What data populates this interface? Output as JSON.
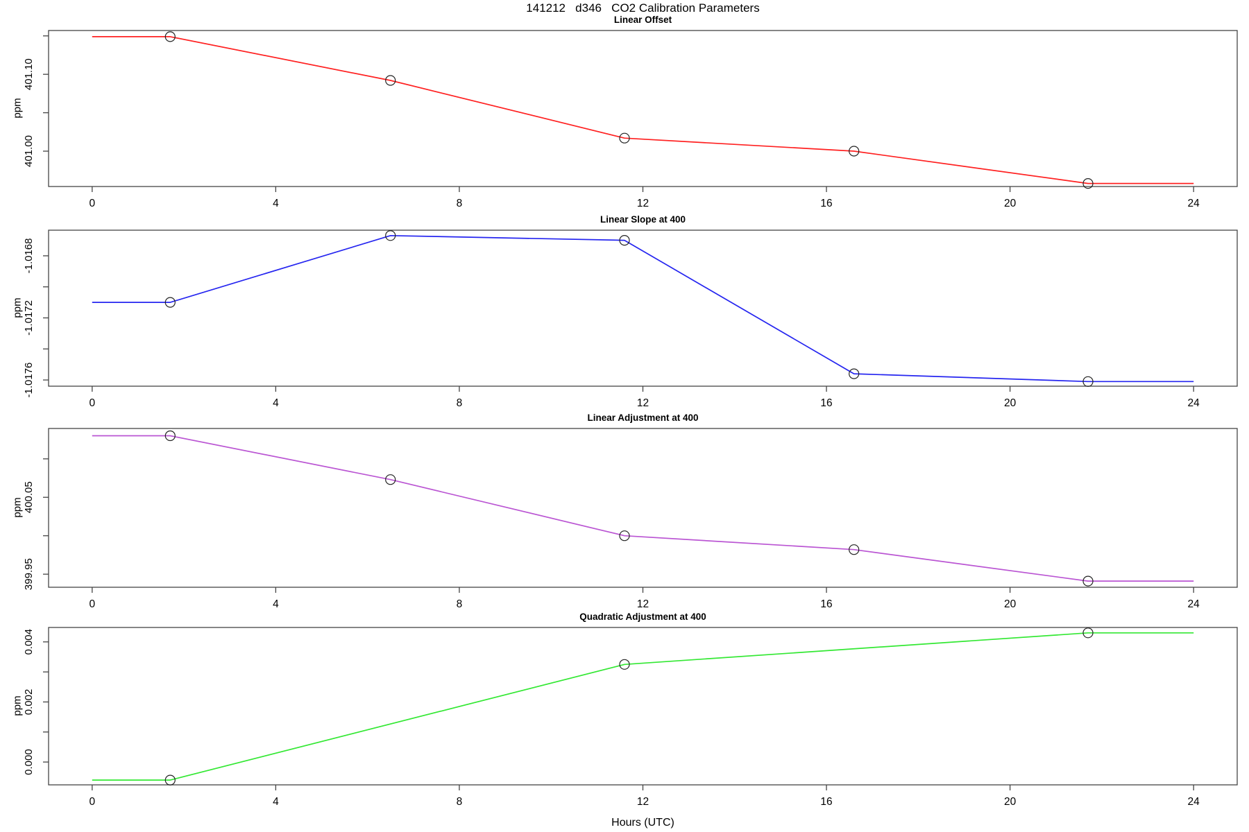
{
  "title": "141212   d346   CO2 Calibration Parameters",
  "xlabel": "Hours (UTC)",
  "x_axis": {
    "ticks": [
      0,
      4,
      8,
      12,
      16,
      20,
      24
    ],
    "range": [
      -0.95,
      24.95
    ]
  },
  "colors": {
    "linear_offset": "#ff2020",
    "linear_slope": "#2525f0",
    "linear_adjustment": "#ba55d3",
    "quadratic_adjustment": "#33e833",
    "marker_stroke": "#222222",
    "axis": "#444444"
  },
  "chart_data": [
    {
      "type": "line",
      "title": "Linear Offset",
      "ylabel": "ppm",
      "color": "#ff2020",
      "x": [
        0,
        1.7,
        6.5,
        11.6,
        16.6,
        21.7,
        24
      ],
      "y": [
        401.149,
        401.149,
        401.092,
        401.017,
        401.0,
        400.958,
        400.958
      ],
      "points_x": [
        1.7,
        6.5,
        11.6,
        16.6,
        21.7
      ],
      "points_y": [
        401.149,
        401.092,
        401.017,
        401.0,
        400.958
      ],
      "ylim": [
        400.954,
        401.157
      ],
      "yticks": [
        {
          "v": 401.15,
          "label": ""
        },
        {
          "v": 401.1,
          "label": "401.10"
        },
        {
          "v": 401.05,
          "label": ""
        },
        {
          "v": 401.0,
          "label": "401.00"
        }
      ]
    },
    {
      "type": "line",
      "title": "Linear Slope at 400",
      "ylabel": "ppm",
      "color": "#2525f0",
      "x": [
        0,
        1.7,
        6.5,
        11.6,
        16.6,
        21.7,
        24
      ],
      "y": [
        -1.0171,
        -1.0171,
        -1.01667,
        -1.0167,
        -1.01756,
        -1.01761,
        -1.01761
      ],
      "points_x": [
        1.7,
        6.5,
        11.6,
        16.6,
        21.7
      ],
      "points_y": [
        -1.0171,
        -1.01667,
        -1.0167,
        -1.01756,
        -1.01761
      ],
      "ylim": [
        -1.01764,
        -1.016635
      ],
      "yticks": [
        {
          "v": -1.0168,
          "label": "-1.0168"
        },
        {
          "v": -1.017,
          "label": ""
        },
        {
          "v": -1.0172,
          "label": "-1.0172"
        },
        {
          "v": -1.0174,
          "label": ""
        },
        {
          "v": -1.0176,
          "label": "-1.0176"
        }
      ]
    },
    {
      "type": "line",
      "title": "Linear Adjustment at 400",
      "ylabel": "ppm",
      "color": "#ba55d3",
      "x": [
        0,
        1.7,
        6.5,
        11.6,
        16.6,
        21.7,
        24
      ],
      "y": [
        400.13,
        400.13,
        400.073,
        400.0,
        399.982,
        399.941,
        399.941
      ],
      "points_x": [
        1.7,
        6.5,
        11.6,
        16.6,
        21.7
      ],
      "points_y": [
        400.13,
        400.073,
        400.0,
        399.982,
        399.941
      ],
      "ylim": [
        399.933,
        400.1395
      ],
      "yticks": [
        {
          "v": 400.1,
          "label": ""
        },
        {
          "v": 400.05,
          "label": "400.05"
        },
        {
          "v": 400.0,
          "label": ""
        },
        {
          "v": 399.95,
          "label": "399.95"
        }
      ]
    },
    {
      "type": "line",
      "title": "Quadratic Adjustment at 400",
      "ylabel": "ppm",
      "color": "#33e833",
      "x": [
        0,
        1.7,
        11.6,
        21.7,
        24
      ],
      "y": [
        -0.0006,
        -0.0006,
        0.00325,
        0.0043,
        0.0043
      ],
      "points_x": [
        1.7,
        11.6,
        21.7
      ],
      "points_y": [
        -0.0006,
        0.00325,
        0.0043
      ],
      "ylim": [
        -0.00076,
        0.00448
      ],
      "yticks": [
        {
          "v": 0.004,
          "label": "0.004"
        },
        {
          "v": 0.003,
          "label": ""
        },
        {
          "v": 0.002,
          "label": "0.002"
        },
        {
          "v": 0.001,
          "label": ""
        },
        {
          "v": 0.0,
          "label": "0.000"
        }
      ]
    }
  ]
}
